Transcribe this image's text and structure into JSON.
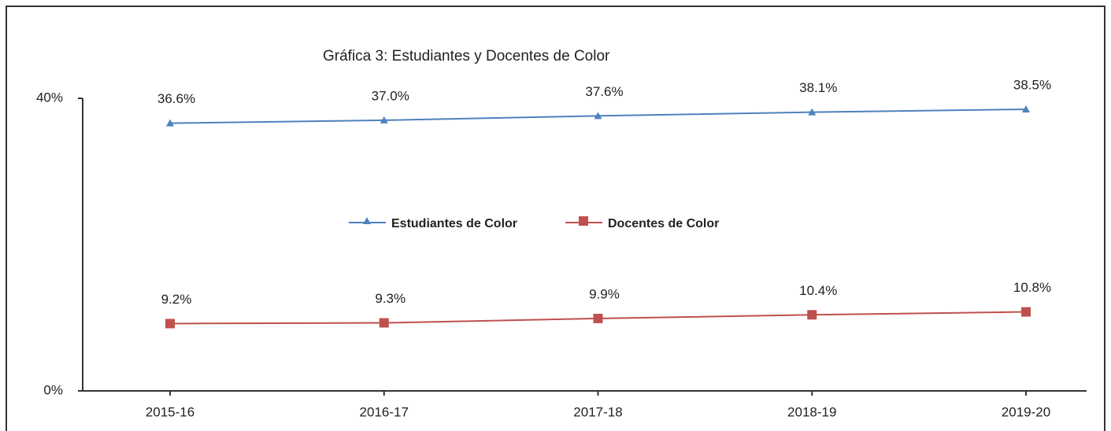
{
  "chart_data": {
    "type": "line",
    "title": "Gráfica 3: Estudiantes y Docentes de Color",
    "categories": [
      "2015-16",
      "2016-17",
      "2017-18",
      "2018-19",
      "2019-20"
    ],
    "series": [
      {
        "name": "Estudiantes de Color",
        "color": "#4f81bd",
        "marker": "triangle",
        "values": [
          36.6,
          37.0,
          37.6,
          38.1,
          38.5
        ],
        "value_labels": [
          "36.6%",
          "37.0%",
          "37.6%",
          "38.1%",
          "38.5%"
        ]
      },
      {
        "name": "Docentes de Color",
        "color": "#c0504d",
        "marker": "square",
        "values": [
          9.2,
          9.3,
          9.9,
          10.4,
          10.8
        ],
        "value_labels": [
          "9.2%",
          "9.3%",
          "9.9%",
          "10.4%",
          "10.8%"
        ]
      }
    ],
    "ylim": [
      0,
      40
    ],
    "yticks": [
      {
        "value": 0,
        "label": "0%"
      },
      {
        "value": 40,
        "label": "40%"
      }
    ],
    "grid": false,
    "legend": "center"
  }
}
